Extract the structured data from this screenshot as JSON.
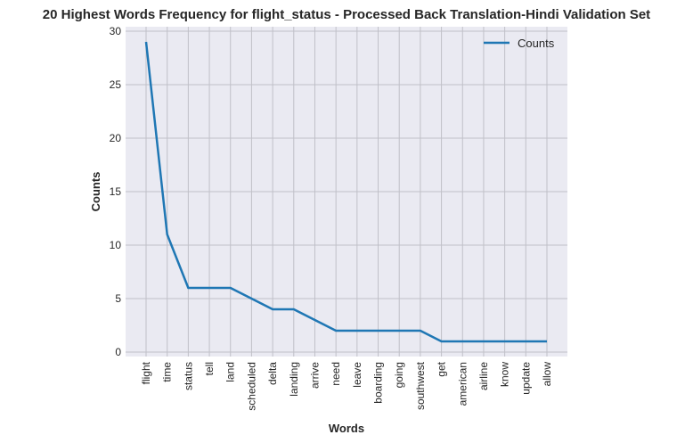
{
  "chart_data": {
    "type": "line",
    "title": "20 Highest Words Frequency for flight_status - Processed Back Translation-Hindi Validation Set",
    "xlabel": "Words",
    "ylabel": "Counts",
    "categories": [
      "flight",
      "time",
      "status",
      "tell",
      "land",
      "scheduled",
      "delta",
      "landing",
      "arrive",
      "need",
      "leave",
      "boarding",
      "going",
      "southwest",
      "get",
      "american",
      "airline",
      "know",
      "update",
      "allow"
    ],
    "series": [
      {
        "name": "Counts",
        "values": [
          29,
          11,
          6,
          6,
          6,
          5,
          4,
          4,
          3,
          2,
          2,
          2,
          2,
          2,
          1,
          1,
          1,
          1,
          1,
          1
        ]
      }
    ],
    "ylim": [
      0,
      30
    ],
    "yticks": [
      0,
      5,
      10,
      15,
      20,
      25,
      30
    ],
    "grid": true,
    "legend": "top-right",
    "colors": {
      "line": "#1f77b4",
      "plot_bg": "#eaeaf2",
      "grid": "#c0c0c8"
    }
  }
}
